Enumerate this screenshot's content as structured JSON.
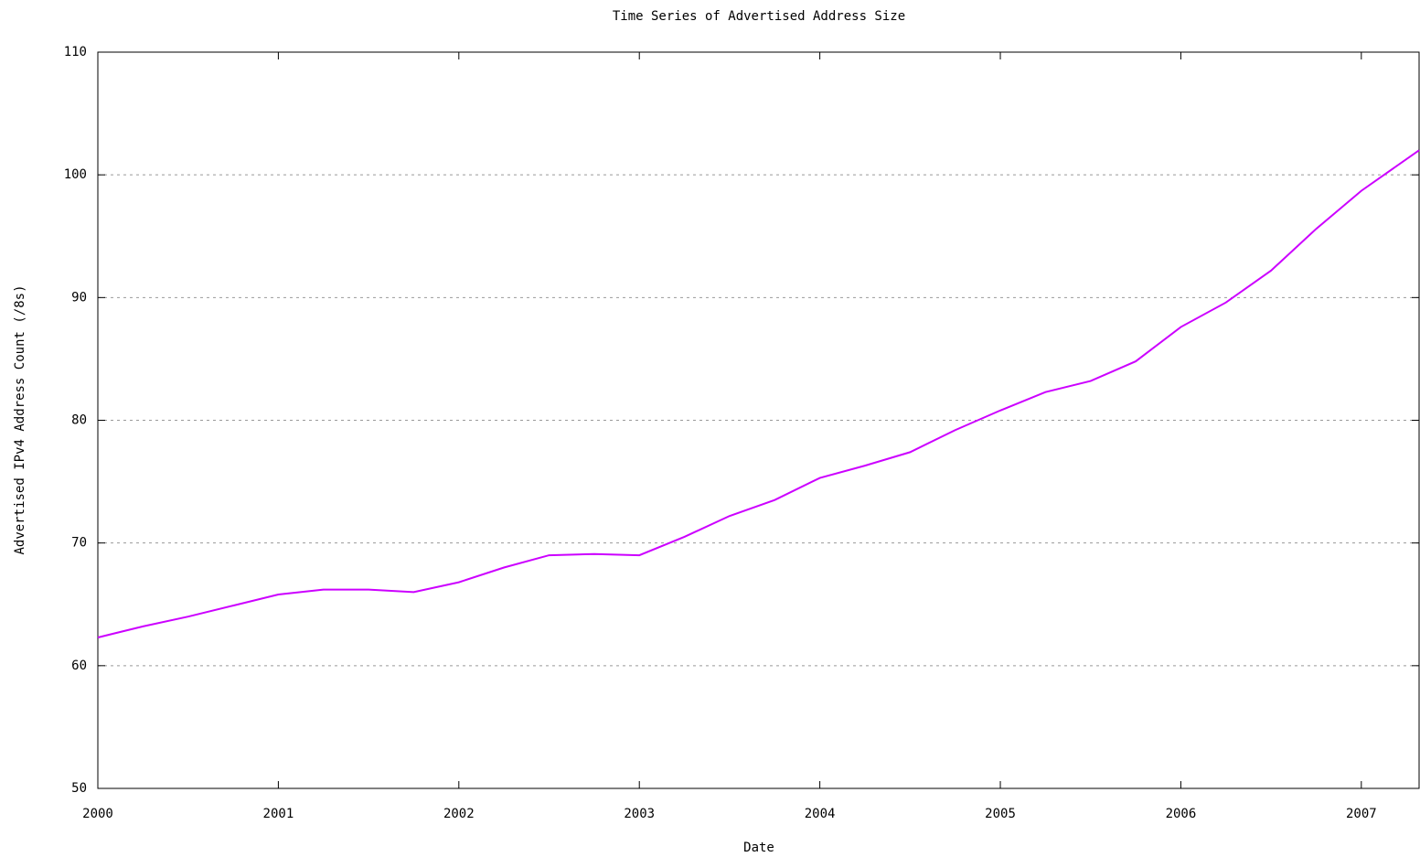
{
  "chart_data": {
    "type": "line",
    "title": "Time Series of Advertised Address Size",
    "x_label": "Date",
    "y_label": "Advertised IPv4 Address Count (/8s)",
    "x": [
      2000,
      2000.25,
      2000.5,
      2000.75,
      2001,
      2001.25,
      2001.5,
      2001.75,
      2002,
      2002.25,
      2002.5,
      2002.75,
      2003,
      2003.25,
      2003.5,
      2003.75,
      2004,
      2004.25,
      2004.5,
      2004.75,
      2005,
      2005.25,
      2005.5,
      2005.75,
      2006,
      2006.25,
      2006.5,
      2006.75,
      2007,
      2007.32
    ],
    "series": [
      {
        "color": "#cc00ff",
        "values": [
          62.3,
          63.2,
          64.0,
          64.9,
          65.8,
          66.2,
          66.2,
          66.0,
          66.8,
          68.0,
          69.0,
          69.1,
          69.0,
          70.5,
          72.2,
          73.5,
          75.3,
          76.3,
          77.4,
          79.2,
          80.8,
          82.3,
          83.2,
          84.8,
          87.6,
          89.6,
          92.2,
          95.6,
          98.7,
          102.0
        ]
      }
    ],
    "xlim": [
      2000,
      2007.32
    ],
    "xticks": [
      2000,
      2001,
      2002,
      2003,
      2004,
      2005,
      2006,
      2007
    ],
    "ylim": [
      50,
      110
    ],
    "yticks": [
      50,
      60,
      70,
      80,
      90,
      100,
      110
    ],
    "grid": true
  }
}
